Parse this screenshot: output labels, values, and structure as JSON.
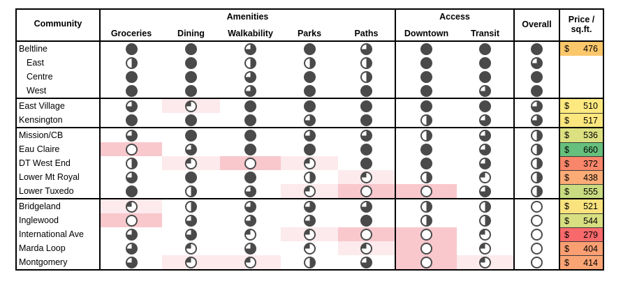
{
  "chart_data": {
    "type": "table",
    "title": "",
    "header_labels": {
      "community": "Community",
      "amenities": "Amenities",
      "access": "Access",
      "overall": "Overall",
      "price_line1": "Price /",
      "price_line2": "sq.ft."
    },
    "rating_columns": [
      "Groceries",
      "Dining",
      "Walkability",
      "Parks",
      "Paths",
      "Downtown",
      "Transit"
    ],
    "rating_scale": "harvey-ball fill fraction: 0, 0.25, 0.5, 0.75, 1 (last value in ratings[] is Overall)",
    "price_prefix": "$",
    "groups": [
      {
        "rows": [
          {
            "community": "Beltline",
            "indent": false,
            "ratings": [
              1,
              1,
              0.75,
              1,
              0.75,
              1,
              1,
              1
            ],
            "highlights": [
              "",
              "",
              "",
              "",
              "",
              "",
              ""
            ],
            "price": 476,
            "price_color": "#FBC76B"
          },
          {
            "community": "East",
            "indent": true,
            "ratings": [
              0.5,
              1,
              0.5,
              0.5,
              0.5,
              1,
              1,
              0.75
            ],
            "highlights": [
              "",
              "",
              "",
              "",
              "",
              "",
              ""
            ],
            "price": null,
            "price_color": null
          },
          {
            "community": "Centre",
            "indent": true,
            "ratings": [
              1,
              1,
              0.75,
              1,
              0.5,
              1,
              1,
              1
            ],
            "highlights": [
              "",
              "",
              "",
              "",
              "",
              "",
              ""
            ],
            "price": null,
            "price_color": null
          },
          {
            "community": "West",
            "indent": true,
            "ratings": [
              1,
              1,
              0.75,
              1,
              1,
              1,
              0.75,
              1
            ],
            "highlights": [
              "",
              "",
              "",
              "",
              "",
              "",
              ""
            ],
            "price": null,
            "price_color": null
          }
        ]
      },
      {
        "rows": [
          {
            "community": "East Village",
            "indent": false,
            "ratings": [
              0.75,
              0.25,
              1,
              1,
              1,
              1,
              1,
              0.75
            ],
            "highlights": [
              "",
              "pale",
              "",
              "",
              "",
              "",
              ""
            ],
            "price": 510,
            "price_color": "#FDE980"
          },
          {
            "community": "Kensington",
            "indent": false,
            "ratings": [
              1,
              1,
              1,
              0.75,
              1,
              0.5,
              0.75,
              0.75
            ],
            "highlights": [
              "",
              "",
              "",
              "",
              "",
              "",
              ""
            ],
            "price": 517,
            "price_color": "#FCE67E"
          }
        ]
      },
      {
        "rows": [
          {
            "community": "Mission/CB",
            "indent": false,
            "ratings": [
              0.75,
              1,
              1,
              0.75,
              0.75,
              0.5,
              0.75,
              0.5
            ],
            "highlights": [
              "",
              "",
              "",
              "",
              "",
              "",
              ""
            ],
            "price": 536,
            "price_color": "#DCE081"
          },
          {
            "community": "Eau Claire",
            "indent": false,
            "ratings": [
              0,
              0.75,
              1,
              1,
              1,
              1,
              0.75,
              0.5
            ],
            "highlights": [
              "strong",
              "",
              "",
              "",
              "",
              "",
              ""
            ],
            "price": 660,
            "price_color": "#66BF7C"
          },
          {
            "community": "DT West End",
            "indent": false,
            "ratings": [
              0.5,
              0.25,
              0,
              0.25,
              1,
              1,
              0.75,
              0.5
            ],
            "highlights": [
              "",
              "pale",
              "strong",
              "pale",
              "",
              "",
              ""
            ],
            "price": 372,
            "price_color": "#F8866A"
          },
          {
            "community": "Lower Mt Royal",
            "indent": false,
            "ratings": [
              0.75,
              1,
              1,
              0.5,
              0.25,
              0.5,
              0.25,
              0.5
            ],
            "highlights": [
              "",
              "",
              "",
              "",
              "pale",
              "",
              ""
            ],
            "price": 438,
            "price_color": "#FAAB76"
          },
          {
            "community": "Lower Tuxedo",
            "indent": false,
            "ratings": [
              1,
              0.5,
              0.75,
              0.25,
              0,
              0,
              0.75,
              0.5
            ],
            "highlights": [
              "",
              "",
              "",
              "pale",
              "strong",
              "strong",
              ""
            ],
            "price": 555,
            "price_color": "#C9DB80"
          }
        ]
      },
      {
        "rows": [
          {
            "community": "Bridgeland",
            "indent": false,
            "ratings": [
              0.25,
              0.5,
              0.75,
              0.75,
              0.75,
              0.5,
              0.5,
              0
            ],
            "highlights": [
              "pale",
              "",
              "",
              "",
              "",
              "",
              ""
            ],
            "price": 521,
            "price_color": "#FAE37E"
          },
          {
            "community": "Inglewood",
            "indent": false,
            "ratings": [
              0,
              0.75,
              0.75,
              0.75,
              1,
              0.5,
              0.5,
              0
            ],
            "highlights": [
              "strong",
              "",
              "",
              "",
              "",
              "",
              ""
            ],
            "price": 544,
            "price_color": "#D7DF81"
          },
          {
            "community": "International Ave",
            "indent": false,
            "ratings": [
              0.75,
              0.75,
              0.25,
              0.25,
              0,
              0,
              0.25,
              0
            ],
            "highlights": [
              "",
              "",
              "",
              "pale",
              "strong",
              "strong",
              ""
            ],
            "price": 279,
            "price_color": "#F8696B"
          },
          {
            "community": "Marda Loop",
            "indent": false,
            "ratings": [
              0.75,
              0.25,
              0.75,
              0.25,
              0.25,
              0,
              0.25,
              0
            ],
            "highlights": [
              "",
              "",
              "",
              "",
              "pale",
              "strong",
              ""
            ],
            "price": 404,
            "price_color": "#F99F72"
          },
          {
            "community": "Montgomery",
            "indent": false,
            "ratings": [
              0.75,
              0.25,
              0.25,
              0.5,
              0.75,
              0,
              0.25,
              0
            ],
            "highlights": [
              "",
              "pale",
              "pale",
              "",
              "",
              "strong",
              "pale"
            ],
            "price": 414,
            "price_color": "#FAA474"
          }
        ]
      }
    ]
  },
  "colors": {
    "ball": "#4A4A4A",
    "highlight_strong": "#F8C8CD",
    "highlight_pale": "#FCEAEC",
    "border": "#000000"
  }
}
